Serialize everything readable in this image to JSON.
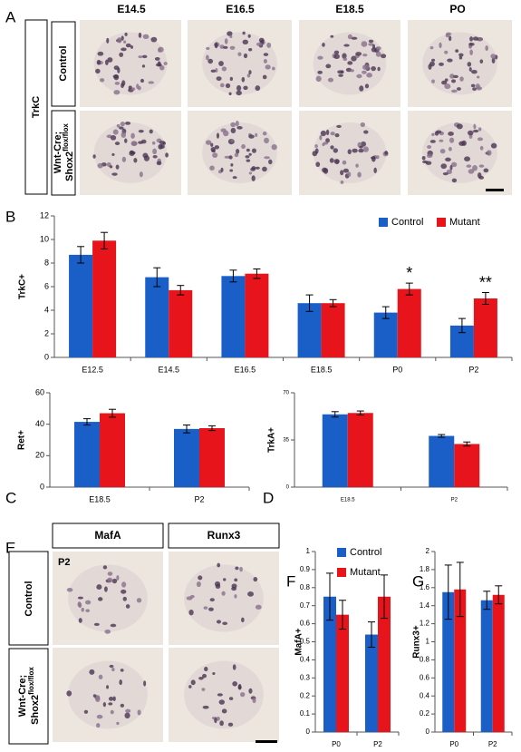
{
  "figure": {
    "panel_a": {
      "letter": "A",
      "columns": [
        "E14.5",
        "E16.5",
        "E18.5",
        "PO"
      ],
      "group": "TrkC",
      "rows": [
        {
          "text": "Control"
        },
        {
          "text": "Wnt-Cre;",
          "gene": "Shox2",
          "sup": "flox/flox"
        }
      ]
    },
    "panel_e": {
      "letter": "E",
      "columns": [
        "MafA",
        "Runx3"
      ],
      "stage": "P2",
      "rows": [
        {
          "text": "Control"
        },
        {
          "text": "Wnt-Cre;",
          "gene": "Shox2",
          "sup": "flox/flox"
        }
      ]
    }
  },
  "chart_data": [
    {
      "type": "bar",
      "panel": "B",
      "y_label": "TrkC+",
      "categories": [
        "E12.5",
        "E14.5",
        "E16.5",
        "E18.5",
        "P0",
        "P2"
      ],
      "series": [
        {
          "name": "Control",
          "color": "#1a5fc8",
          "values": [
            8.7,
            6.8,
            6.9,
            4.6,
            3.8,
            2.7
          ],
          "errors": [
            0.7,
            0.8,
            0.5,
            0.7,
            0.5,
            0.6
          ]
        },
        {
          "name": "Mutant",
          "color": "#e8141c",
          "values": [
            9.9,
            5.7,
            7.1,
            4.6,
            5.8,
            5.0
          ],
          "errors": [
            0.7,
            0.4,
            0.4,
            0.3,
            0.5,
            0.5
          ],
          "significance": [
            null,
            null,
            null,
            null,
            "*",
            "**"
          ]
        }
      ],
      "ylim": [
        0,
        12
      ],
      "yticks": [
        0,
        2,
        4,
        6,
        8,
        10,
        12
      ],
      "legend": "top-right"
    },
    {
      "type": "bar",
      "panel": "C",
      "y_label": "Ret+",
      "categories": [
        "E18.5",
        "P2"
      ],
      "series": [
        {
          "color": "#1a5fc8",
          "values": [
            41.5,
            37
          ],
          "errors": [
            2,
            2.5
          ]
        },
        {
          "color": "#e8141c",
          "values": [
            47,
            37.5
          ],
          "errors": [
            2.5,
            1.5
          ]
        }
      ],
      "ylim": [
        0,
        60
      ],
      "yticks": [
        0,
        20,
        40,
        60
      ]
    },
    {
      "type": "bar",
      "panel": "D",
      "y_label": "TrkA+",
      "categories": [
        "E18.5",
        "P2"
      ],
      "series": [
        {
          "color": "#1a5fc8",
          "values": [
            54,
            38
          ],
          "errors": [
            2,
            1
          ]
        },
        {
          "color": "#e8141c",
          "values": [
            55,
            32
          ],
          "errors": [
            1.5,
            1.5
          ]
        }
      ],
      "ylim": [
        0,
        70
      ],
      "yticks": [
        0,
        35,
        70
      ]
    },
    {
      "type": "bar",
      "panel": "F",
      "y_label": "MafA+",
      "categories": [
        "P0",
        "P2"
      ],
      "series": [
        {
          "name": "Control",
          "color": "#1a5fc8",
          "values": [
            0.75,
            0.54
          ],
          "errors": [
            0.13,
            0.07
          ]
        },
        {
          "name": "Mutant",
          "color": "#e8141c",
          "values": [
            0.65,
            0.75
          ],
          "errors": [
            0.08,
            0.12
          ]
        }
      ],
      "ylim": [
        0,
        1
      ],
      "yticks": [
        0,
        0.1,
        0.2,
        0.3,
        0.4,
        0.5,
        0.6,
        0.7,
        0.8,
        0.9,
        1
      ],
      "legend": "top"
    },
    {
      "type": "bar",
      "panel": "G",
      "y_label": "Runx3+",
      "categories": [
        "P0",
        "P2"
      ],
      "series": [
        {
          "color": "#1a5fc8",
          "values": [
            1.55,
            1.46
          ],
          "errors": [
            0.3,
            0.1
          ]
        },
        {
          "color": "#e8141c",
          "values": [
            1.58,
            1.52
          ],
          "errors": [
            0.3,
            0.1
          ]
        }
      ],
      "ylim": [
        0,
        2
      ],
      "yticks": [
        0,
        0.2,
        0.4,
        0.6,
        0.8,
        1,
        1.2,
        1.4,
        1.6,
        1.8,
        2
      ]
    }
  ]
}
